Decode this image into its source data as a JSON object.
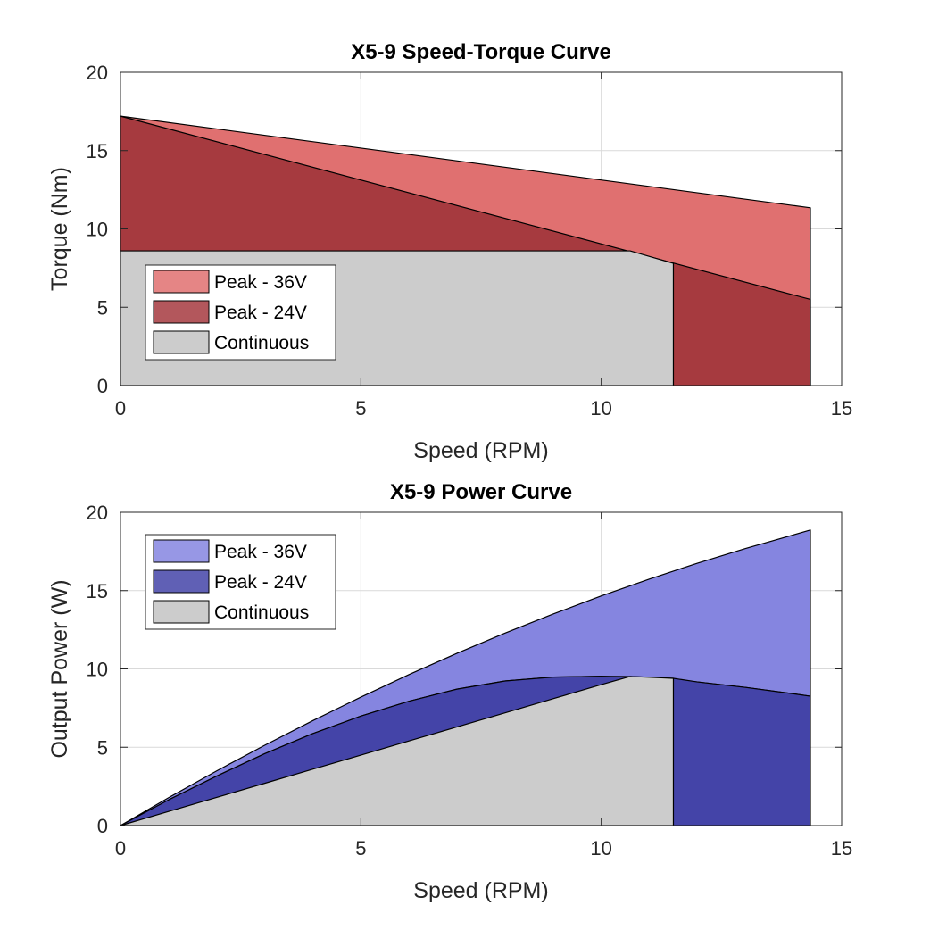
{
  "chart_data": [
    {
      "type": "area",
      "title": "X5-9 Speed-Torque Curve",
      "xlabel": "Speed (RPM)",
      "ylabel": "Torque (Nm)",
      "xlim": [
        0,
        15
      ],
      "ylim": [
        0,
        20
      ],
      "xticks": [
        "0",
        "5",
        "10",
        "15"
      ],
      "yticks": [
        "0",
        "5",
        "10",
        "15",
        "20"
      ],
      "grid": true,
      "legend_position": "bottom-left",
      "series": [
        {
          "name": "Peak - 36V",
          "color": "#e07070",
          "points": [
            [
              0,
              0
            ],
            [
              0,
              17.2
            ],
            [
              14.35,
              11.35
            ],
            [
              14.35,
              0
            ]
          ]
        },
        {
          "name": "Peak - 24V",
          "color": "#a63a3f",
          "points": [
            [
              0,
              0
            ],
            [
              0,
              17.2
            ],
            [
              14.35,
              5.5
            ],
            [
              14.35,
              0
            ]
          ]
        },
        {
          "name": "Continuous",
          "color": "#cccccc",
          "points": [
            [
              0,
              0
            ],
            [
              0,
              8.6
            ],
            [
              10.6,
              8.6
            ],
            [
              11.5,
              7.8
            ],
            [
              11.5,
              0
            ]
          ]
        }
      ]
    },
    {
      "type": "area",
      "title": "X5-9 Power Curve",
      "xlabel": "Speed (RPM)",
      "ylabel": "Output Power (W)",
      "xlim": [
        0,
        15
      ],
      "ylim": [
        0,
        20
      ],
      "xticks": [
        "0",
        "5",
        "10",
        "15"
      ],
      "yticks": [
        "0",
        "5",
        "10",
        "15",
        "20"
      ],
      "grid": true,
      "legend_position": "top-left",
      "series": [
        {
          "name": "Peak - 36V",
          "color": "#8585e0",
          "points": [
            [
              0,
              0
            ],
            [
              1,
              1.78
            ],
            [
              2,
              3.49
            ],
            [
              3,
              5.13
            ],
            [
              4,
              6.7
            ],
            [
              5,
              8.2
            ],
            [
              6,
              9.64
            ],
            [
              7,
              11.0
            ],
            [
              8,
              12.29
            ],
            [
              9,
              13.51
            ],
            [
              10,
              14.66
            ],
            [
              11,
              15.74
            ],
            [
              12,
              16.75
            ],
            [
              13,
              17.69
            ],
            [
              14.35,
              18.87
            ],
            [
              14.35,
              8.26
            ],
            [
              14,
              8.41
            ],
            [
              13,
              8.82
            ],
            [
              12,
              9.17
            ],
            [
              11,
              9.41
            ],
            [
              10,
              9.53
            ],
            [
              9,
              9.48
            ],
            [
              8,
              9.23
            ],
            [
              7,
              8.71
            ],
            [
              6,
              7.94
            ],
            [
              5,
              6.99
            ],
            [
              4,
              5.87
            ],
            [
              3,
              4.59
            ],
            [
              2,
              3.16
            ],
            [
              1,
              1.64
            ],
            [
              0,
              0
            ]
          ]
        },
        {
          "name": "Peak - 24V",
          "color": "#4444a8",
          "points": [
            [
              0,
              0
            ],
            [
              1,
              1.64
            ],
            [
              2,
              3.16
            ],
            [
              3,
              4.59
            ],
            [
              4,
              5.87
            ],
            [
              5,
              6.99
            ],
            [
              6,
              7.94
            ],
            [
              7,
              8.71
            ],
            [
              8,
              9.23
            ],
            [
              9,
              9.48
            ],
            [
              10,
              9.53
            ],
            [
              10.6,
              9.52
            ],
            [
              11.5,
              9.4
            ],
            [
              12,
              9.17
            ],
            [
              13,
              8.82
            ],
            [
              14,
              8.41
            ],
            [
              14.35,
              8.26
            ],
            [
              14.35,
              0
            ],
            [
              0,
              0
            ]
          ]
        },
        {
          "name": "Continuous",
          "color": "#cccccc",
          "points": [
            [
              0,
              0
            ],
            [
              1,
              0.9
            ],
            [
              2,
              1.8
            ],
            [
              3,
              2.7
            ],
            [
              4,
              3.6
            ],
            [
              5,
              4.5
            ],
            [
              6,
              5.4
            ],
            [
              7,
              6.3
            ],
            [
              8,
              7.2
            ],
            [
              9,
              8.1
            ],
            [
              10,
              9.0
            ],
            [
              10.6,
              9.52
            ],
            [
              11,
              9.47
            ],
            [
              11.5,
              9.4
            ],
            [
              11.5,
              0
            ],
            [
              0,
              0
            ]
          ]
        }
      ]
    }
  ]
}
